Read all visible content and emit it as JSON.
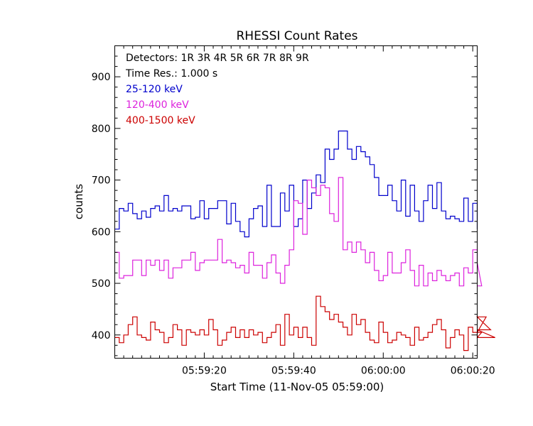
{
  "chart_data": {
    "type": "line",
    "title": "RHESSI Count Rates",
    "xlabel": "Start Time (11-Nov-05 05:59:00)",
    "ylabel": "counts",
    "xlim": [
      0,
      81
    ],
    "ylim": [
      355,
      960
    ],
    "x_ticks": [
      {
        "x": 20,
        "label": "05:59:20"
      },
      {
        "x": 40,
        "label": "05:59:40"
      },
      {
        "x": 60,
        "label": "06:00:00"
      },
      {
        "x": 80,
        "label": "06:00:20"
      }
    ],
    "y_ticks": [
      {
        "y": 400,
        "label": "400"
      },
      {
        "y": 500,
        "label": "500"
      },
      {
        "y": 600,
        "label": "600"
      },
      {
        "y": 700,
        "label": "700"
      },
      {
        "y": 800,
        "label": "800"
      },
      {
        "y": 900,
        "label": "900"
      }
    ],
    "annotations": {
      "detectors": "Detectors:  1R 3R 4R 5R 6R 7R 8R 9R",
      "time_res": "Time Res.: 1.000 s"
    },
    "grid": false,
    "legend_position": "top-left",
    "bin_seconds": 1,
    "series": [
      {
        "name": "25-120 keV",
        "color": "#0000cc",
        "values": [
          605,
          645,
          640,
          655,
          635,
          625,
          640,
          628,
          645,
          650,
          640,
          670,
          640,
          645,
          640,
          650,
          650,
          625,
          628,
          660,
          625,
          645,
          645,
          660,
          660,
          615,
          655,
          620,
          600,
          590,
          625,
          645,
          650,
          610,
          690,
          610,
          610,
          675,
          640,
          690,
          610,
          625,
          700,
          645,
          675,
          710,
          695,
          760,
          740,
          760,
          795,
          795,
          760,
          740,
          765,
          755,
          745,
          730,
          705,
          670,
          670,
          690,
          660,
          640,
          700,
          630,
          690,
          640,
          620,
          660,
          690,
          645,
          695,
          640,
          625,
          630,
          625,
          620,
          665,
          620,
          655,
          605
        ]
      },
      {
        "name": "120-400 keV",
        "color": "#dd22dd",
        "values": [
          560,
          510,
          515,
          515,
          545,
          545,
          515,
          545,
          535,
          545,
          525,
          545,
          510,
          530,
          530,
          545,
          545,
          560,
          525,
          540,
          545,
          545,
          545,
          585,
          540,
          545,
          540,
          530,
          535,
          520,
          560,
          535,
          535,
          510,
          540,
          555,
          520,
          500,
          535,
          565,
          660,
          655,
          595,
          700,
          685,
          670,
          690,
          685,
          635,
          620,
          705,
          565,
          580,
          560,
          580,
          565,
          540,
          560,
          525,
          505,
          515,
          560,
          520,
          520,
          540,
          565,
          525,
          495,
          535,
          495,
          520,
          505,
          525,
          515,
          505,
          515,
          520,
          495,
          530,
          520,
          565,
          540,
          495
        ]
      },
      {
        "name": "400-1500 keV",
        "color": "#cc0000",
        "values": [
          395,
          385,
          400,
          420,
          435,
          400,
          395,
          390,
          425,
          410,
          405,
          385,
          395,
          420,
          410,
          380,
          410,
          405,
          400,
          410,
          400,
          430,
          410,
          380,
          390,
          405,
          415,
          395,
          410,
          395,
          410,
          400,
          405,
          385,
          395,
          405,
          420,
          380,
          440,
          400,
          415,
          395,
          415,
          395,
          380,
          475,
          455,
          445,
          430,
          440,
          425,
          415,
          400,
          440,
          420,
          430,
          405,
          390,
          385,
          425,
          405,
          385,
          390,
          405,
          400,
          395,
          380,
          415,
          390,
          395,
          405,
          420,
          430,
          410,
          375,
          395,
          410,
          400,
          370,
          415,
          405,
          395,
          405,
          435,
          410,
          395
        ]
      }
    ]
  }
}
